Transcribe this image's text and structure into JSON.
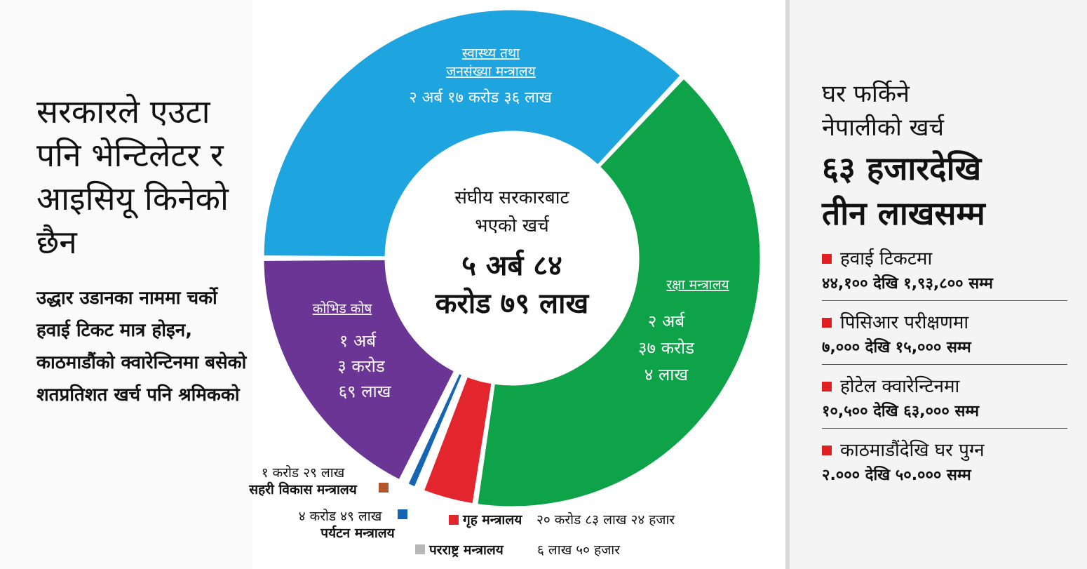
{
  "left": {
    "headline": "सरकारले एउटा पनि भेन्टिलेटर र आइसियू किनेको छैन",
    "subtext": "उद्धार उडानका नाममा चर्को हवाई टिकट मात्र होइन, काठमाडौंको क्वारेन्टिनमा बसेको शतप्रतिशत खर्च पनि श्रमिकको"
  },
  "right": {
    "title_line1": "घर फर्किने",
    "title_line2": "नेपालीको खर्च",
    "big_line1": "६३ हजारदेखि",
    "big_line2": "तीन लाखसम्म",
    "costs": [
      {
        "label": "हवाई टिकटमा",
        "value": "४४,१०० देखि १,९३,८०० सम्म"
      },
      {
        "label": "पिसिआर परीक्षणमा",
        "value": "७,००० देखि १५,००० सम्म"
      },
      {
        "label": "होटेल क्वारेन्टिनमा",
        "value": "१०,५०० देखि ६३,००० सम्म"
      },
      {
        "label": "काठमाडौंदेखि घर पुग्न",
        "value": "२.००० देखि ५०.००० सम्म"
      }
    ],
    "bullet_color": "#e02020"
  },
  "chart_data": {
    "type": "pie",
    "center_line1": "संघीय सरकारबाट",
    "center_line2": "भएको खर्च",
    "center_value_line1": "५ अर्ब ८४",
    "center_value_line2": "करोड ७९ लाख",
    "total_npr": 58479,
    "units": "लाख",
    "slices": [
      {
        "name_line1": "स्वास्थ्य तथा",
        "name_line2": "जनसंख्या मन्त्रालय",
        "value_text": "२ अर्ब १७ करोड ३६ लाख",
        "value": 21736,
        "color": "#1ea4df"
      },
      {
        "name_line1": "रक्षा मन्त्रालय",
        "name_line2": "",
        "value_line1": "२ अर्ब",
        "value_line2": "३७ करोड",
        "value_line3": "४ लाख",
        "value": 23704,
        "color": "#0ea349"
      },
      {
        "name_line1": "गृह मन्त्रालय",
        "value_text": "२० करोड ८३ लाख २४ हजार",
        "value": 2083.24,
        "color": "#e3262d"
      },
      {
        "name_line1": "परराष्ट्र मन्त्रालय",
        "value_text": "६ लाख ५० हजार",
        "value": 6.5,
        "color": "#b7b7b7"
      },
      {
        "name_line1": "पर्यटन मन्त्रालय",
        "value_text": "४ करोड ४९ लाख",
        "value": 449,
        "color": "#1565b3"
      },
      {
        "name_line1": "सहरी विकास मन्त्रालय",
        "value_text": "१ करोड २९ लाख",
        "value": 129,
        "color": "#b2552a"
      },
      {
        "name_line1": "कोभिड कोष",
        "value_line1": "१ अर्ब",
        "value_line2": "३ करोड",
        "value_line3": "६९ लाख",
        "value": 10369,
        "color": "#6b3595"
      }
    ]
  }
}
